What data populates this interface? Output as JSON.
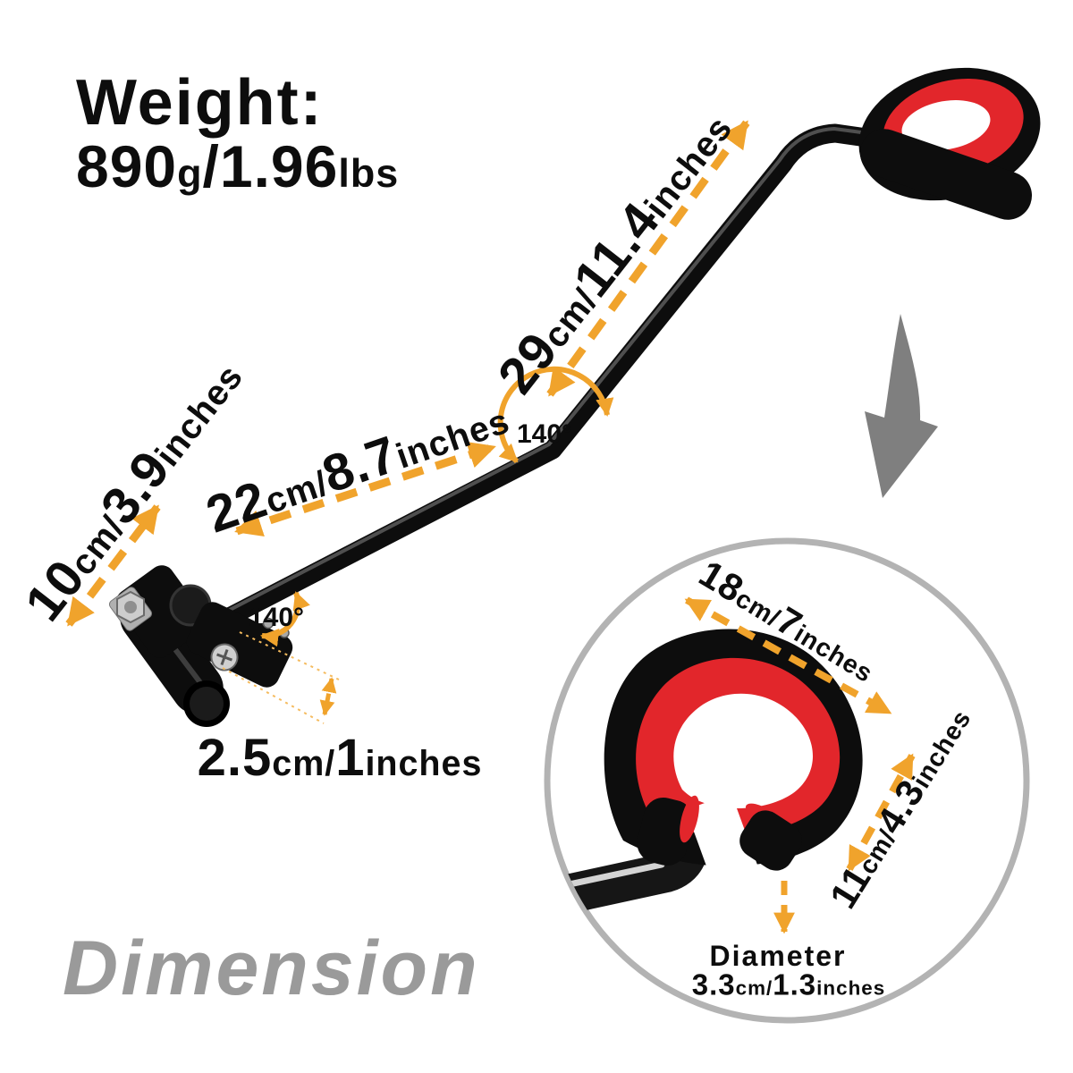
{
  "colors": {
    "accent": "#F0A32C",
    "accent_light": "#F5BB5E",
    "foam_red": "#E2262B",
    "product_black": "#0D0D0D",
    "gray_arrow": "#7F7F7F",
    "circle_border": "#B3B3B3",
    "title_gray": "#9A9A9A"
  },
  "weight": {
    "label": "Weight:",
    "value_parts": [
      [
        "890",
        "b"
      ],
      [
        "g",
        "s"
      ],
      [
        "/",
        "b"
      ],
      [
        "1.96",
        "b"
      ],
      [
        "lbs",
        "s"
      ]
    ]
  },
  "footer": {
    "title": "Dimension"
  },
  "annotations": {
    "upper_arm_length": {
      "parts": [
        [
          "29",
          "b"
        ],
        [
          "cm/",
          "s"
        ],
        [
          "11.4",
          "b"
        ],
        [
          "inches",
          "s"
        ]
      ]
    },
    "middle_arm_length": {
      "parts": [
        [
          "22",
          "b"
        ],
        [
          "cm/",
          "s"
        ],
        [
          "8.7",
          "b"
        ],
        [
          "inches",
          "s"
        ]
      ]
    },
    "lower_arm_length": {
      "parts": [
        [
          "10",
          "b"
        ],
        [
          "cm/",
          "s"
        ],
        [
          "3.9",
          "b"
        ],
        [
          "inches",
          "s"
        ]
      ]
    },
    "clamp_width": {
      "parts": [
        [
          "2.5",
          "b"
        ],
        [
          "cm/",
          "s"
        ],
        [
          "1",
          "b"
        ],
        [
          "inches",
          "s"
        ]
      ]
    },
    "grip_length": {
      "parts": [
        [
          "18",
          "b"
        ],
        [
          "cm/",
          "s"
        ],
        [
          "7",
          "b"
        ],
        [
          "inches",
          "s"
        ]
      ]
    },
    "grip_height": {
      "parts": [
        [
          "11",
          "b"
        ],
        [
          "cm/",
          "s"
        ],
        [
          "4.3",
          "b"
        ],
        [
          "inches",
          "s"
        ]
      ]
    },
    "grip_diameter": {
      "label": "Diameter",
      "parts": [
        [
          "3.3",
          "b"
        ],
        [
          "cm/",
          "s"
        ],
        [
          "1.3",
          "b"
        ],
        [
          "inches",
          "s"
        ]
      ]
    },
    "bend_angle_mid": {
      "text": "140°"
    },
    "bend_angle_clamp": {
      "text": "140°"
    }
  }
}
